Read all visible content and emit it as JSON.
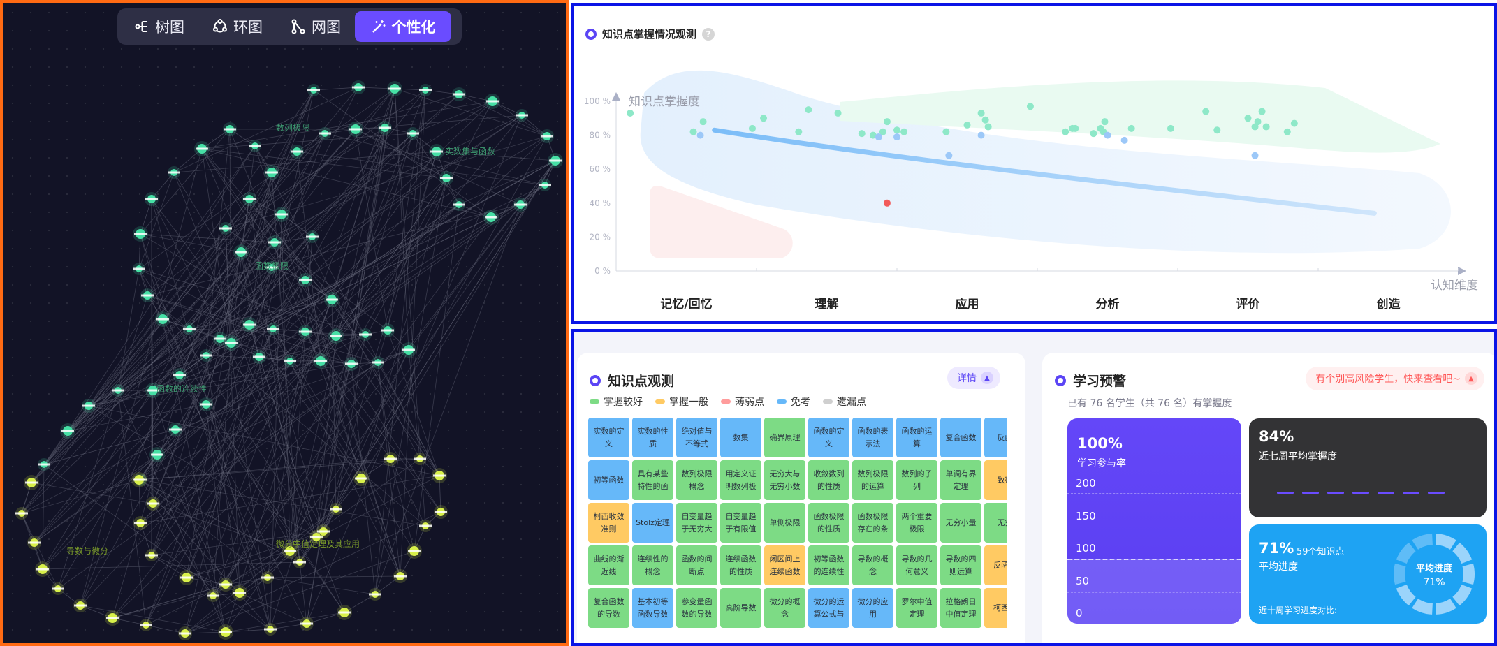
{
  "view_tabs": [
    {
      "label": "树图",
      "icon": "tree-icon",
      "active": false
    },
    {
      "label": "环图",
      "icon": "ring-icon",
      "active": false
    },
    {
      "label": "网图",
      "icon": "network-icon",
      "active": false
    },
    {
      "label": "个性化",
      "icon": "magic-wand-icon",
      "active": true
    }
  ],
  "graph": {
    "cluster_labels": [
      "数列极限",
      "实数集与函数",
      "函数极限",
      "函数的连续性",
      "导数与微分",
      "微分中值定理及其应用"
    ],
    "colors": {
      "background": "#121326",
      "node_teal": "#46e0a5",
      "node_yellow": "#d8f04a",
      "edge": "#6a6c7e",
      "label_teal": "#3d9a70",
      "label_olive": "#7a9a2a",
      "frame": "#ff6a13"
    }
  },
  "mastery": {
    "title": "知识点掌握情况观测",
    "help": "?",
    "colors": {
      "accent": "#5b45f5",
      "frame": "#0a14e6"
    },
    "chart_data": {
      "type": "scatter",
      "ylabel": "知识点掌握度",
      "xlabel": "认知维度",
      "y_ticks": [
        "100 %",
        "80 %",
        "60 %",
        "40 %",
        "20 %",
        "0 %"
      ],
      "categories": [
        "记忆/回忆",
        "理解",
        "应用",
        "分析",
        "评价",
        "创造"
      ],
      "ylim": [
        0,
        100
      ],
      "xlim": [
        0,
        6
      ],
      "trend": [
        {
          "x": 0.7,
          "y": 83
        },
        {
          "x": 2.0,
          "y": 66
        },
        {
          "x": 3.5,
          "y": 52
        },
        {
          "x": 5.4,
          "y": 34
        }
      ],
      "series": [
        {
          "color": "#8ee8c8",
          "points": [
            [
              0.1,
              93
            ],
            [
              0.55,
              82
            ],
            [
              0.62,
              88
            ],
            [
              0.97,
              84
            ],
            [
              1.05,
              90
            ],
            [
              1.3,
              82
            ],
            [
              1.37,
              95
            ],
            [
              1.58,
              93
            ],
            [
              1.75,
              81
            ],
            [
              1.83,
              80
            ],
            [
              1.9,
              82
            ],
            [
              1.93,
              88
            ],
            [
              2.0,
              83
            ],
            [
              2.05,
              82
            ],
            [
              2.35,
              82
            ],
            [
              2.5,
              86
            ],
            [
              2.6,
              93
            ],
            [
              2.63,
              89
            ],
            [
              2.65,
              85
            ],
            [
              2.95,
              97
            ],
            [
              3.2,
              82
            ],
            [
              3.25,
              84
            ],
            [
              3.27,
              84
            ],
            [
              3.4,
              81
            ],
            [
              3.45,
              84
            ],
            [
              3.47,
              82
            ],
            [
              3.48,
              88
            ],
            [
              3.67,
              84
            ],
            [
              3.95,
              84
            ],
            [
              4.2,
              94
            ],
            [
              4.28,
              83
            ],
            [
              4.5,
              90
            ],
            [
              4.55,
              85
            ],
            [
              4.57,
              88
            ],
            [
              4.6,
              94
            ],
            [
              4.63,
              85
            ],
            [
              4.78,
              82
            ],
            [
              4.83,
              87
            ]
          ]
        },
        {
          "color": "#9cc8f8",
          "points": [
            [
              0.6,
              80
            ],
            [
              1.87,
              79
            ],
            [
              2.0,
              79
            ],
            [
              2.37,
              68
            ],
            [
              2.6,
              80
            ],
            [
              3.5,
              80
            ],
            [
              3.62,
              77
            ],
            [
              4.55,
              68
            ]
          ]
        },
        {
          "color": "#f25a5a",
          "points": [
            [
              1.93,
              40
            ]
          ]
        }
      ]
    }
  },
  "knowledge_obs": {
    "title": "知识点观测",
    "detail_label": "详情",
    "legend": [
      {
        "label": "掌握较好",
        "color": "#7ddb85"
      },
      {
        "label": "掌握一般",
        "color": "#ffca63"
      },
      {
        "label": "薄弱点",
        "color": "#ff9c9c"
      },
      {
        "label": "免考",
        "color": "#66b8f9"
      },
      {
        "label": "遗漏点",
        "color": "#cfcfcf"
      }
    ],
    "grid": [
      [
        {
          "t": "实数的定义",
          "s": "exempt"
        },
        {
          "t": "实数的性质",
          "s": "exempt"
        },
        {
          "t": "绝对值与不等式",
          "s": "exempt"
        },
        {
          "t": "数集",
          "s": "exempt"
        },
        {
          "t": "确界原理",
          "s": "good"
        },
        {
          "t": "函数的定义",
          "s": "exempt"
        },
        {
          "t": "函数的表示法",
          "s": "exempt"
        },
        {
          "t": "函数的运算",
          "s": "exempt"
        },
        {
          "t": "复合函数",
          "s": "exempt"
        },
        {
          "t": "反函",
          "s": "exempt"
        }
      ],
      [
        {
          "t": "初等函数",
          "s": "exempt"
        },
        {
          "t": "具有某些特性的函",
          "s": "good"
        },
        {
          "t": "数列极限概念",
          "s": "good"
        },
        {
          "t": "用定义证明数列极",
          "s": "good"
        },
        {
          "t": "无穷大与无穷小数",
          "s": "good"
        },
        {
          "t": "收敛数列的性质",
          "s": "good"
        },
        {
          "t": "数列极限的运算",
          "s": "good"
        },
        {
          "t": "数列的子列",
          "s": "good"
        },
        {
          "t": "单调有界定理",
          "s": "good"
        },
        {
          "t": "致密",
          "s": "ok"
        }
      ],
      [
        {
          "t": "柯西收敛准则",
          "s": "ok"
        },
        {
          "t": "Stolz定理",
          "s": "exempt"
        },
        {
          "t": "自变量趋于无穷大",
          "s": "good"
        },
        {
          "t": "自变量趋于有限值",
          "s": "good"
        },
        {
          "t": "单侧极限",
          "s": "good"
        },
        {
          "t": "函数极限的性质",
          "s": "good"
        },
        {
          "t": "函数极限存在的条",
          "s": "good"
        },
        {
          "t": "两个重要极限",
          "s": "good"
        },
        {
          "t": "无穷小量",
          "s": "good"
        },
        {
          "t": "无穷",
          "s": "good"
        }
      ],
      [
        {
          "t": "曲线的渐近线",
          "s": "good"
        },
        {
          "t": "连续性的概念",
          "s": "good"
        },
        {
          "t": "函数的间断点",
          "s": "good"
        },
        {
          "t": "连续函数的性质",
          "s": "good"
        },
        {
          "t": "闭区间上连续函数",
          "s": "ok"
        },
        {
          "t": "初等函数的连续性",
          "s": "good"
        },
        {
          "t": "导数的概念",
          "s": "good"
        },
        {
          "t": "导数的几何意义",
          "s": "good"
        },
        {
          "t": "导数的四则运算",
          "s": "good"
        },
        {
          "t": "反函导",
          "s": "ok"
        }
      ],
      [
        {
          "t": "复合函数的导数",
          "s": "good"
        },
        {
          "t": "基本初等函数导数",
          "s": "exempt"
        },
        {
          "t": "参变量函数的导数",
          "s": "good"
        },
        {
          "t": "高阶导数",
          "s": "good"
        },
        {
          "t": "微分的概念",
          "s": "good"
        },
        {
          "t": "微分的运算公式与",
          "s": "exempt"
        },
        {
          "t": "微分的应用",
          "s": "exempt"
        },
        {
          "t": "罗尔中值定理",
          "s": "good"
        },
        {
          "t": "拉格朗日中值定理",
          "s": "good"
        },
        {
          "t": "柯西定",
          "s": "ok"
        }
      ]
    ]
  },
  "warning": {
    "title": "学习预警",
    "alert": "有个别高风险学生，快来查看吧~",
    "summary": "已有 76 名学生（共 76 名）有掌握度",
    "participation": {
      "rate": "100%",
      "label": "学习参与率",
      "axis": [
        "200",
        "150",
        "100",
        "50",
        "0"
      ],
      "participants": 76
    },
    "weekly_avg": {
      "value": "84%",
      "label": "近七周平均掌握度"
    },
    "progress": {
      "value": "71%",
      "count_label": "59个知识点",
      "label": "平均进度",
      "compare_label": "近十周学习进度对比:",
      "donut_title": "平均进度",
      "donut_value": "71%",
      "fraction": 0.71
    }
  }
}
